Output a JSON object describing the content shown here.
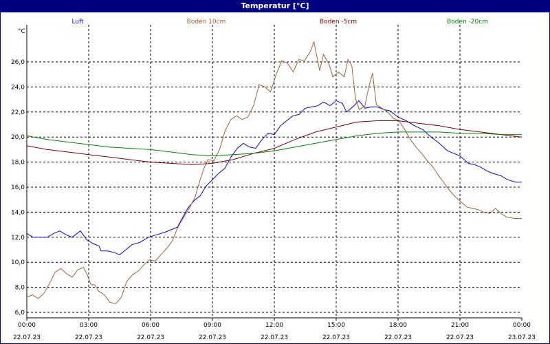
{
  "title": "Temperatur [°C]",
  "chart_data": {
    "type": "line",
    "title": "Temperatur [°C]",
    "ylabel": "°C",
    "ylim": [
      5.5,
      29.5
    ],
    "xlim": [
      "22.07.23 00:00",
      "23.07.23 00:00"
    ],
    "grid": true,
    "legend_position": "top",
    "yticks": [
      "6,0",
      "8,0",
      "10,0",
      "12,0",
      "14,0",
      "16,0",
      "18,0",
      "20,0",
      "22,0",
      "24,0",
      "26,0"
    ],
    "ytick_values": [
      6,
      8,
      10,
      12,
      14,
      16,
      18,
      20,
      22,
      24,
      26
    ],
    "xticks": [
      {
        "time": "00:00",
        "date": "22.07.23",
        "hour": 0
      },
      {
        "time": "03:00",
        "date": "22.07.23",
        "hour": 3
      },
      {
        "time": "06:00",
        "date": "22.07.23",
        "hour": 6
      },
      {
        "time": "09:00",
        "date": "22.07.23",
        "hour": 9
      },
      {
        "time": "12:00",
        "date": "22.07.23",
        "hour": 12
      },
      {
        "time": "15:00",
        "date": "22.07.23",
        "hour": 15
      },
      {
        "time": "18:00",
        "date": "22.07.23",
        "hour": 18
      },
      {
        "time": "21:00",
        "date": "22.07.23",
        "hour": 21
      },
      {
        "time": "00:00",
        "date": "23.07.23",
        "hour": 24
      }
    ],
    "series": [
      {
        "name": "Luft",
        "color": "#0000dd",
        "points": [
          [
            0,
            12.3
          ],
          [
            0.3,
            12.0
          ],
          [
            0.7,
            12.0
          ],
          [
            1.0,
            12.0
          ],
          [
            1.3,
            12.3
          ],
          [
            1.6,
            12.5
          ],
          [
            1.9,
            12.2
          ],
          [
            2.2,
            12.0
          ],
          [
            2.6,
            12.5
          ],
          [
            2.9,
            11.8
          ],
          [
            3.2,
            11.5
          ],
          [
            3.5,
            11.3
          ],
          [
            3.6,
            10.9
          ],
          [
            3.9,
            10.9
          ],
          [
            4.2,
            10.8
          ],
          [
            4.5,
            10.6
          ],
          [
            4.8,
            11.0
          ],
          [
            5.1,
            11.4
          ],
          [
            5.5,
            11.6
          ],
          [
            5.9,
            12.0
          ],
          [
            6.3,
            12.2
          ],
          [
            6.7,
            12.4
          ],
          [
            7.0,
            12.6
          ],
          [
            7.3,
            12.8
          ],
          [
            7.5,
            13.4
          ],
          [
            7.8,
            14.3
          ],
          [
            8.1,
            14.9
          ],
          [
            8.4,
            15.3
          ],
          [
            8.7,
            16.1
          ],
          [
            9.0,
            16.6
          ],
          [
            9.3,
            17.1
          ],
          [
            9.6,
            17.5
          ],
          [
            9.9,
            18.4
          ],
          [
            10.2,
            19.1
          ],
          [
            10.5,
            19.5
          ],
          [
            10.8,
            19.2
          ],
          [
            11.1,
            19.1
          ],
          [
            11.4,
            19.8
          ],
          [
            11.7,
            20.3
          ],
          [
            12.0,
            20.2
          ],
          [
            12.3,
            20.9
          ],
          [
            12.6,
            21.3
          ],
          [
            12.9,
            21.7
          ],
          [
            13.2,
            21.8
          ],
          [
            13.5,
            22.3
          ],
          [
            13.8,
            22.4
          ],
          [
            14.1,
            22.5
          ],
          [
            14.4,
            22.8
          ],
          [
            14.7,
            22.5
          ],
          [
            15.0,
            22.9
          ],
          [
            15.3,
            22.7
          ],
          [
            15.5,
            22.0
          ],
          [
            15.8,
            22.4
          ],
          [
            16.1,
            22.9
          ],
          [
            16.4,
            22.3
          ],
          [
            16.7,
            22.4
          ],
          [
            17.0,
            22.4
          ],
          [
            17.3,
            22.2
          ],
          [
            17.6,
            22.1
          ],
          [
            18.0,
            21.6
          ],
          [
            18.4,
            21.3
          ],
          [
            18.8,
            20.9
          ],
          [
            19.2,
            20.6
          ],
          [
            19.6,
            20.0
          ],
          [
            20.0,
            19.5
          ],
          [
            20.4,
            18.9
          ],
          [
            20.7,
            18.7
          ],
          [
            21.0,
            18.5
          ],
          [
            21.4,
            17.9
          ],
          [
            21.7,
            17.8
          ],
          [
            22.0,
            17.6
          ],
          [
            22.3,
            17.3
          ],
          [
            22.6,
            17.1
          ],
          [
            23.0,
            16.9
          ],
          [
            23.3,
            16.6
          ],
          [
            23.7,
            16.4
          ],
          [
            24.0,
            16.4
          ]
        ]
      },
      {
        "name": "Boden 10cm",
        "color": "#a0603a",
        "points": [
          [
            0,
            7.2
          ],
          [
            0.3,
            7.4
          ],
          [
            0.6,
            7.1
          ],
          [
            0.9,
            7.5
          ],
          [
            1.2,
            8.3
          ],
          [
            1.5,
            9.2
          ],
          [
            1.8,
            9.5
          ],
          [
            2.1,
            9.1
          ],
          [
            2.4,
            8.8
          ],
          [
            2.7,
            9.4
          ],
          [
            3.0,
            9.6
          ],
          [
            3.2,
            9.0
          ],
          [
            3.4,
            8.2
          ],
          [
            3.6,
            8.2
          ],
          [
            3.8,
            7.7
          ],
          [
            4.1,
            7.4
          ],
          [
            4.4,
            6.8
          ],
          [
            4.7,
            6.7
          ],
          [
            5.0,
            7.2
          ],
          [
            5.3,
            8.5
          ],
          [
            5.6,
            9.0
          ],
          [
            5.9,
            9.3
          ],
          [
            6.2,
            9.8
          ],
          [
            6.5,
            10.2
          ],
          [
            6.8,
            10.1
          ],
          [
            7.1,
            10.6
          ],
          [
            7.4,
            11.1
          ],
          [
            7.7,
            11.7
          ],
          [
            8.0,
            12.8
          ],
          [
            8.3,
            13.6
          ],
          [
            8.6,
            14.3
          ],
          [
            8.9,
            15.2
          ],
          [
            9.2,
            16.7
          ],
          [
            9.4,
            17.6
          ],
          [
            9.6,
            18.2
          ],
          [
            9.9,
            18.1
          ],
          [
            10.2,
            19.0
          ],
          [
            10.5,
            20.5
          ],
          [
            10.8,
            21.4
          ],
          [
            11.1,
            21.7
          ],
          [
            11.4,
            21.4
          ],
          [
            11.7,
            21.6
          ],
          [
            12.0,
            22.5
          ],
          [
            12.3,
            24.2
          ],
          [
            12.6,
            24.0
          ],
          [
            12.9,
            23.6
          ],
          [
            13.2,
            25.0
          ],
          [
            13.5,
            26.1
          ],
          [
            13.8,
            25.9
          ],
          [
            14.1,
            25.2
          ],
          [
            14.4,
            26.2
          ],
          [
            14.7,
            26.1
          ],
          [
            15.0,
            26.8
          ],
          [
            15.2,
            27.6
          ],
          [
            15.5,
            25.3
          ],
          [
            15.7,
            26.6
          ],
          [
            16.0,
            25.8
          ],
          [
            16.2,
            24.8
          ],
          [
            16.5,
            25.2
          ],
          [
            16.8,
            24.8
          ],
          [
            17.0,
            26.2
          ],
          [
            17.2,
            25.7
          ],
          [
            17.4,
            23.0
          ],
          [
            17.6,
            22.2
          ],
          [
            17.9,
            22.5
          ],
          [
            18.1,
            24.0
          ],
          [
            18.3,
            25.1
          ],
          [
            18.5,
            22.6
          ],
          [
            18.8,
            22.3
          ],
          [
            19.1,
            22.0
          ],
          [
            19.4,
            21.5
          ],
          [
            19.7,
            21.3
          ],
          [
            20.0,
            20.6
          ],
          [
            20.3,
            19.8
          ],
          [
            20.6,
            19.2
          ],
          [
            20.9,
            18.7
          ],
          [
            21.2,
            18.1
          ],
          [
            21.5,
            17.6
          ],
          [
            21.8,
            16.9
          ],
          [
            22.1,
            16.3
          ],
          [
            22.4,
            15.7
          ],
          [
            22.7,
            15.2
          ],
          [
            23.0,
            14.8
          ],
          [
            23.3,
            14.4
          ],
          [
            23.6,
            14.3
          ],
          [
            23.9,
            14.2
          ],
          [
            24.2,
            14.0
          ],
          [
            24.5,
            13.9
          ],
          [
            24.8,
            14.3
          ],
          [
            25.1,
            13.9
          ],
          [
            25.4,
            13.6
          ],
          [
            25.8,
            13.5
          ],
          [
            26.2,
            13.5
          ]
        ]
      },
      {
        "name": "Boden -5cm",
        "color": "#800000",
        "points": [
          [
            0,
            19.3
          ],
          [
            1,
            19.0
          ],
          [
            2,
            18.8
          ],
          [
            3,
            18.6
          ],
          [
            4,
            18.4
          ],
          [
            5,
            18.2
          ],
          [
            6,
            18.0
          ],
          [
            7,
            17.9
          ],
          [
            8,
            17.8
          ],
          [
            9,
            17.9
          ],
          [
            10,
            18.2
          ],
          [
            11,
            18.7
          ],
          [
            12,
            19.1
          ],
          [
            13,
            19.8
          ],
          [
            14,
            20.4
          ],
          [
            15,
            20.8
          ],
          [
            16,
            21.2
          ],
          [
            17,
            21.3
          ],
          [
            18,
            21.3
          ],
          [
            19,
            21.1
          ],
          [
            20,
            20.9
          ],
          [
            21,
            20.6
          ],
          [
            22,
            20.4
          ],
          [
            23,
            20.2
          ],
          [
            24,
            20.0
          ]
        ]
      },
      {
        "name": "Boden -20cm",
        "color": "#008000",
        "points": [
          [
            0,
            20.1
          ],
          [
            1,
            19.8
          ],
          [
            2,
            19.6
          ],
          [
            3,
            19.4
          ],
          [
            4,
            19.2
          ],
          [
            5,
            19.1
          ],
          [
            6,
            19.0
          ],
          [
            7,
            18.8
          ],
          [
            8,
            18.6
          ],
          [
            9,
            18.5
          ],
          [
            10,
            18.6
          ],
          [
            11,
            18.7
          ],
          [
            12,
            18.9
          ],
          [
            13,
            19.2
          ],
          [
            14,
            19.5
          ],
          [
            15,
            19.8
          ],
          [
            16,
            20.1
          ],
          [
            17,
            20.3
          ],
          [
            18,
            20.4
          ],
          [
            19,
            20.4
          ],
          [
            20,
            20.4
          ],
          [
            21,
            20.3
          ],
          [
            22,
            20.3
          ],
          [
            23,
            20.2
          ],
          [
            24,
            20.2
          ]
        ]
      }
    ]
  }
}
